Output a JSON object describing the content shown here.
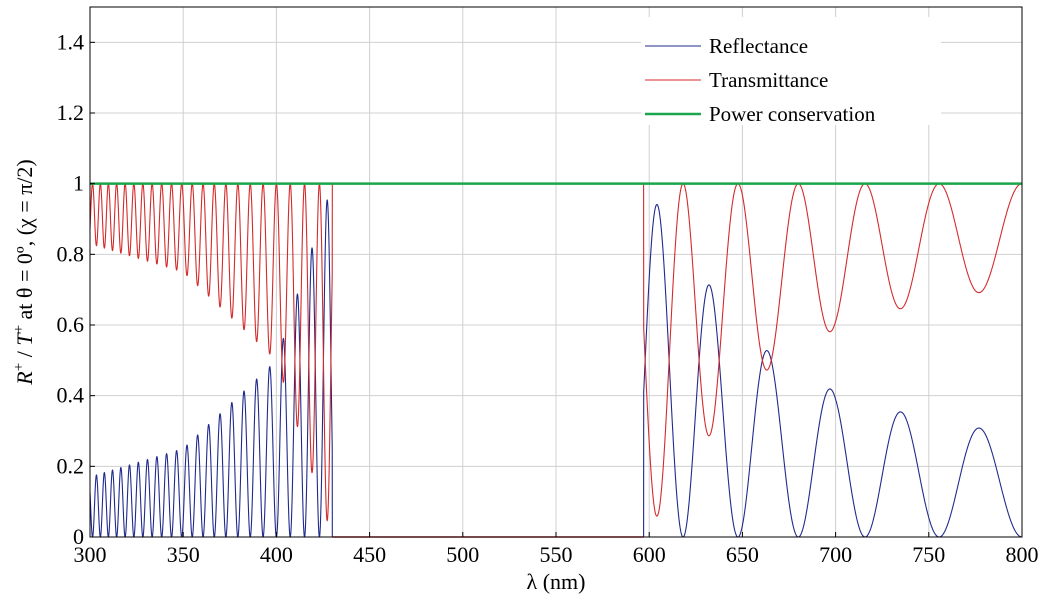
{
  "chart_data": {
    "type": "line",
    "title": "",
    "xlabel": "λ (nm)",
    "ylabel_parts": {
      "r": "R",
      "sup1": "+",
      "sep": " / ",
      "t": "T",
      "sup2": "+",
      "rest": "  at  θ = 0º, (χ = π/2)"
    },
    "xlim": [
      300,
      800
    ],
    "ylim": [
      0,
      1.5
    ],
    "x_ticks": [
      "300",
      "350",
      "400",
      "450",
      "500",
      "550",
      "600",
      "650",
      "700",
      "750",
      "800"
    ],
    "y_ticks": [
      "0",
      "0.2",
      "0.4",
      "0.6",
      "0.8",
      "1",
      "1.2",
      "1.4"
    ],
    "grid": true,
    "legend_position": "top-right",
    "bandgap_nm": [
      430,
      597
    ],
    "series": [
      {
        "name": "Reflectance",
        "color": "#1f2a8c",
        "description": "oscillating, envelope rising from ~0.17 at 300 nm to 1 at 430 nm; 0 in band gap; from 1 at 597 nm envelope falls to ~0.29 at 800 nm",
        "envelope_max": [
          [
            300,
            0.17
          ],
          [
            350,
            0.25
          ],
          [
            400,
            0.5
          ],
          [
            430,
            1.0
          ],
          [
            597,
            1.0
          ],
          [
            650,
            0.57
          ],
          [
            700,
            0.41
          ],
          [
            750,
            0.33
          ],
          [
            800,
            0.29
          ]
        ]
      },
      {
        "name": "Transmittance",
        "color": "#d42a2a",
        "description": "complement of reflectance (T = 1 - R)",
        "envelope_min": [
          [
            300,
            0.83
          ],
          [
            350,
            0.75
          ],
          [
            400,
            0.5
          ],
          [
            430,
            0.0
          ],
          [
            597,
            0.0
          ],
          [
            650,
            0.43
          ],
          [
            700,
            0.59
          ],
          [
            750,
            0.67
          ],
          [
            800,
            0.71
          ]
        ]
      },
      {
        "name": "Power conservation",
        "color": "#1aa64a",
        "value": 1.0
      }
    ]
  }
}
